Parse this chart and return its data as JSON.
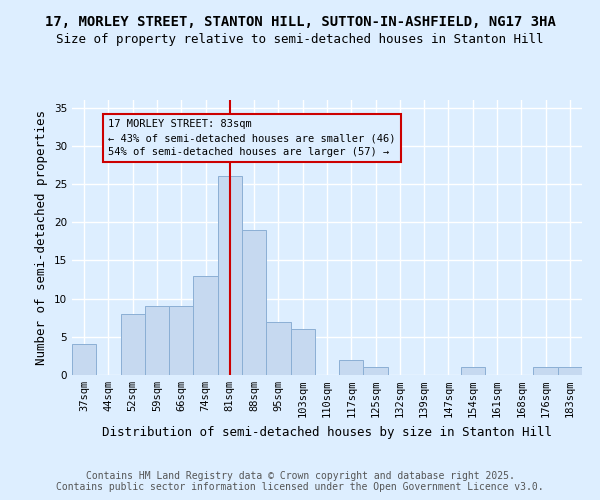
{
  "title1": "17, MORLEY STREET, STANTON HILL, SUTTON-IN-ASHFIELD, NG17 3HA",
  "title2": "Size of property relative to semi-detached houses in Stanton Hill",
  "xlabel": "Distribution of semi-detached houses by size in Stanton Hill",
  "ylabel": "Number of semi-detached properties",
  "categories": [
    "37sqm",
    "44sqm",
    "52sqm",
    "59sqm",
    "66sqm",
    "74sqm",
    "81sqm",
    "88sqm",
    "95sqm",
    "103sqm",
    "110sqm",
    "117sqm",
    "125sqm",
    "132sqm",
    "139sqm",
    "147sqm",
    "154sqm",
    "161sqm",
    "168sqm",
    "176sqm",
    "183sqm"
  ],
  "values": [
    4,
    0,
    8,
    9,
    9,
    13,
    26,
    19,
    7,
    6,
    0,
    2,
    1,
    0,
    0,
    0,
    1,
    0,
    0,
    1,
    1
  ],
  "bar_color": "#c6d9f0",
  "bar_edge_color": "#8bafd4",
  "vline_x": 6,
  "vline_color": "#cc0000",
  "annotation_line1": "17 MORLEY STREET: 83sqm",
  "annotation_line2": "← 43% of semi-detached houses are smaller (46)",
  "annotation_line3": "54% of semi-detached houses are larger (57) →",
  "ylim": [
    0,
    36
  ],
  "yticks": [
    0,
    5,
    10,
    15,
    20,
    25,
    30,
    35
  ],
  "footer_text": "Contains HM Land Registry data © Crown copyright and database right 2025.\nContains public sector information licensed under the Open Government Licence v3.0.",
  "background_color": "#ddeeff",
  "plot_background_color": "#ddeeff",
  "grid_color": "#ffffff",
  "title_fontsize": 10,
  "subtitle_fontsize": 9,
  "axis_label_fontsize": 9,
  "tick_fontsize": 7.5,
  "annotation_fontsize": 7.5,
  "footer_fontsize": 7,
  "footer_color": "#555555"
}
